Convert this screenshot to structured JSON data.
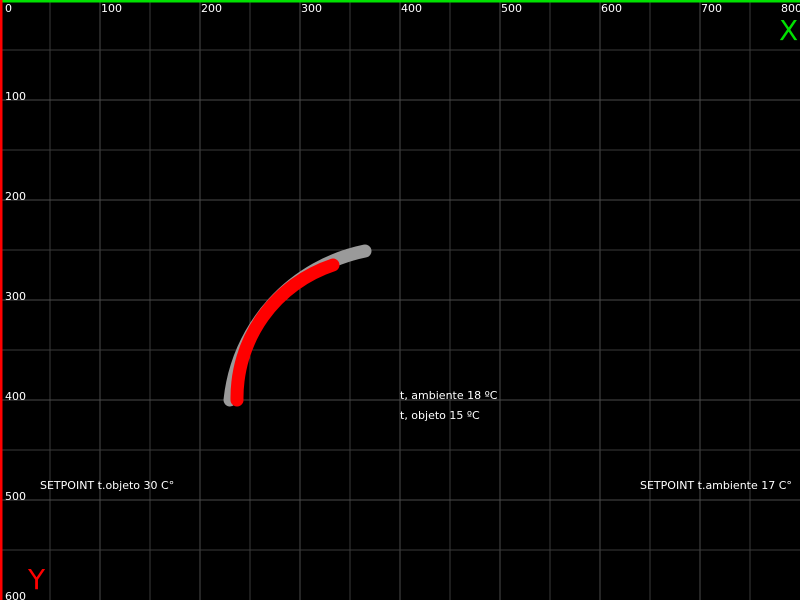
{
  "axes": {
    "x_letter": "X",
    "y_letter": "Y",
    "x_ticks": [
      "0",
      "100",
      "200",
      "300",
      "400",
      "500",
      "600",
      "700",
      "800"
    ],
    "y_ticks": [
      "100",
      "200",
      "300",
      "400",
      "500",
      "600"
    ],
    "x_axis_color": "#00e000",
    "y_axis_color": "#ff0000",
    "grid_color": "#3a3a3a"
  },
  "readouts": {
    "ambient_temp": "t, ambiente 18 ºC",
    "object_temp": "t, objeto 15 ºC"
  },
  "setpoints": {
    "object": "SETPOINT t.objeto 30 C°",
    "ambient": "SETPOINT t.ambiente 17 C°"
  },
  "gauge": {
    "track_color": "#9a9a9a",
    "value_color": "#ff0000"
  }
}
